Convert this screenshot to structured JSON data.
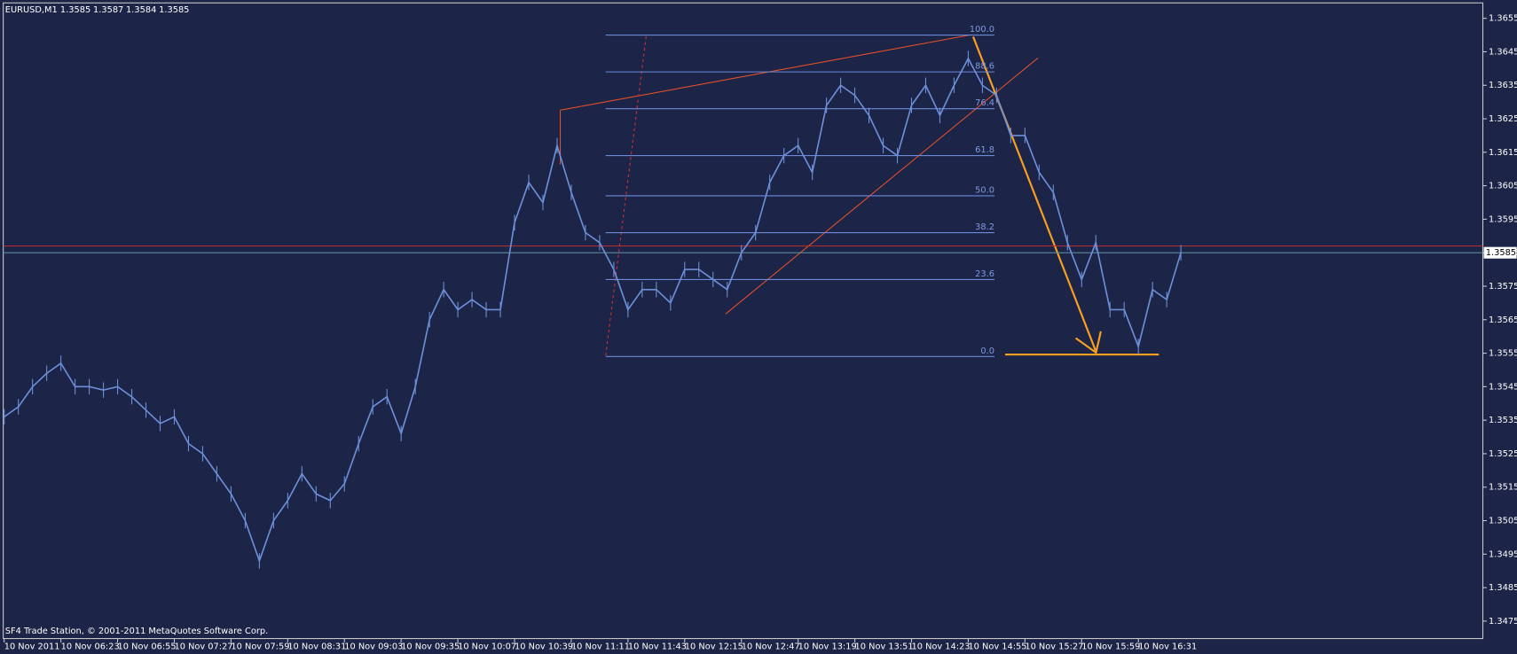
{
  "chart_data": {
    "type": "line",
    "symbol": "EURUSD,M1",
    "quote": [
      1.3585,
      1.3587,
      1.3584,
      1.3585
    ],
    "footer": "SF4 Trade Station, © 2001-2011 MetaQuotes Software Corp.",
    "color": "#6d8fd8",
    "categories": [
      "10 Nov 2011",
      null,
      null,
      null,
      "10 Nov 06:23",
      null,
      null,
      null,
      "10 Nov 06:55",
      null,
      null,
      null,
      "10 Nov 07:27",
      null,
      null,
      null,
      "10 Nov 07:59",
      null,
      null,
      null,
      "10 Nov 08:31",
      null,
      null,
      null,
      "10 Nov 09:03",
      null,
      null,
      null,
      "10 Nov 09:35",
      null,
      null,
      null,
      "10 Nov 10:07",
      null,
      null,
      null,
      "10 Nov 10:39",
      null,
      null,
      null,
      "10 Nov 11:11",
      null,
      null,
      null,
      "10 Nov 11:43",
      null,
      null,
      null,
      "10 Nov 12:15",
      null,
      null,
      null,
      "10 Nov 12:47",
      null,
      null,
      null,
      "10 Nov 13:19",
      null,
      null,
      null,
      "10 Nov 13:51",
      null,
      null,
      null,
      "10 Nov 14:23",
      null,
      null,
      null,
      "10 Nov 14:55",
      null,
      null,
      null,
      "10 Nov 15:27",
      null,
      null,
      null,
      "10 Nov 15:59",
      null,
      null,
      null,
      "10 Nov 16:31",
      null,
      null,
      null
    ],
    "values": [
      1.3536,
      1.3539,
      1.3545,
      1.3549,
      1.3552,
      1.3545,
      1.3545,
      1.3544,
      1.3545,
      1.3542,
      1.3538,
      1.3534,
      1.3536,
      1.3528,
      1.3525,
      1.3519,
      1.3513,
      1.3505,
      1.3493,
      1.3505,
      1.3511,
      1.3519,
      1.3513,
      1.3511,
      1.3516,
      1.3528,
      1.3539,
      1.3542,
      1.3531,
      1.3545,
      1.3565,
      1.3574,
      1.3568,
      1.3571,
      1.3568,
      1.3568,
      1.3594,
      1.3606,
      1.36,
      1.3617,
      1.3603,
      1.3591,
      1.3588,
      1.358,
      1.3568,
      1.3574,
      1.3574,
      1.357,
      1.358,
      1.358,
      1.3577,
      1.3574,
      1.3585,
      1.3591,
      1.3606,
      1.3614,
      1.3617,
      1.3609,
      1.3629,
      1.3635,
      1.3632,
      1.3626,
      1.3617,
      1.3614,
      1.3629,
      1.3635,
      1.3626,
      1.3635,
      1.3643,
      1.3635,
      1.3632,
      1.362,
      1.362,
      1.3609,
      1.3603,
      1.3588,
      1.3577,
      1.3588,
      1.3568,
      1.3568,
      1.3557,
      1.3574,
      1.3571,
      1.3585
    ],
    "ylim": [
      1.34698,
      1.36596
    ],
    "yticks": [
      1.3655,
      1.3645,
      1.3635,
      1.3625,
      1.3615,
      1.3605,
      1.3595,
      1.3585,
      1.3575,
      1.3565,
      1.3555,
      1.3545,
      1.3535,
      1.3525,
      1.3515,
      1.3505,
      1.3495,
      1.3485,
      1.3475
    ],
    "fibonacci": [
      {
        "label": "100.0",
        "price": 1.365
      },
      {
        "label": "88.6",
        "price": 1.3639
      },
      {
        "label": "76.4",
        "price": 1.3628
      },
      {
        "label": "61.8",
        "price": 1.3614
      },
      {
        "label": "50.0",
        "price": 1.3602
      },
      {
        "label": "38.2",
        "price": 1.3591
      },
      {
        "label": "23.6",
        "price": 1.3577
      },
      {
        "label": "0.0",
        "price": 1.3554
      }
    ]
  }
}
